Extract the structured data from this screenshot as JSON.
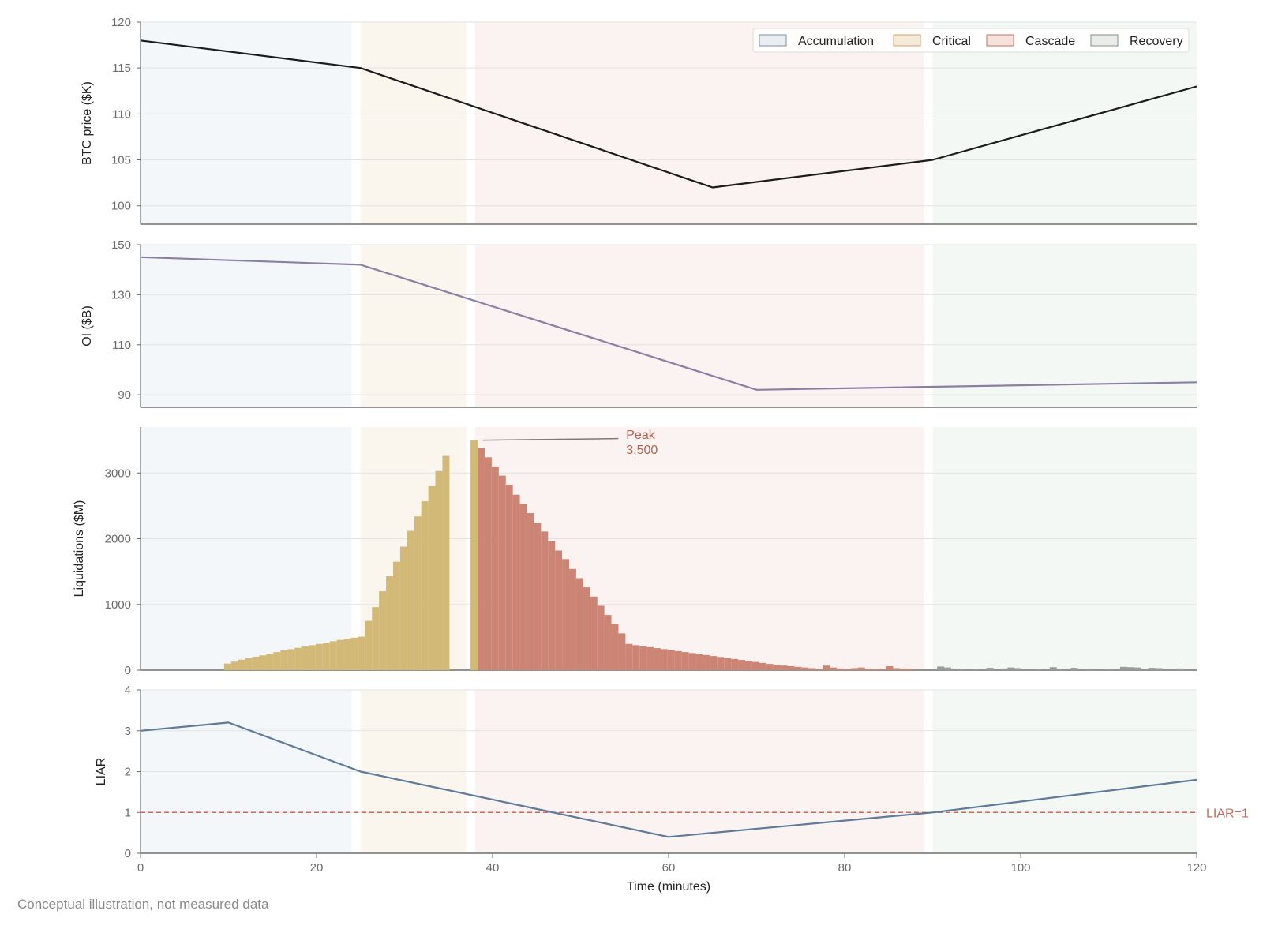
{
  "footer_note": "Conceptual illustration, not measured data",
  "chart_data": {
    "type": "multi-panel",
    "x_axis": {
      "label": "Time (minutes)",
      "range": [
        0,
        120
      ],
      "ticks": [
        0,
        20,
        40,
        60,
        80,
        100,
        120
      ]
    },
    "phases": [
      {
        "name": "Accumulation",
        "start": 0,
        "end": 24,
        "fill": "#dbe6f0",
        "legend_fill": "#e9eef3",
        "legend_edge": "#7f93a8"
      },
      {
        "name": "Critical",
        "start": 25,
        "end": 37,
        "fill": "#efe4c9",
        "legend_fill": "#f4ead8",
        "legend_edge": "#d6a06f"
      },
      {
        "name": "Cascade",
        "start": 38,
        "end": 89,
        "fill": "#f1d9d3",
        "legend_fill": "#f5e2dc",
        "legend_edge": "#c9705f"
      },
      {
        "name": "Recovery",
        "start": 90,
        "end": 120,
        "fill": "#dde8dd",
        "legend_fill": "#e9ece9",
        "legend_edge": "#8a8f8a"
      }
    ],
    "legend_position": "top-right",
    "panels": [
      {
        "id": "price",
        "type": "line",
        "ylabel": "BTC price ($K)",
        "ylim": [
          98,
          120
        ],
        "yticks": [
          100,
          105,
          110,
          115,
          120
        ],
        "color": "#1c1c1c",
        "points": [
          [
            0,
            118
          ],
          [
            25,
            115
          ],
          [
            65,
            102
          ],
          [
            90,
            105
          ],
          [
            120,
            113
          ]
        ]
      },
      {
        "id": "oi",
        "type": "line",
        "ylabel": "OI ($B)",
        "ylim": [
          85,
          150
        ],
        "yticks": [
          90,
          110,
          130,
          150
        ],
        "color": "#8b7fa3",
        "points": [
          [
            0,
            145
          ],
          [
            25,
            142
          ],
          [
            70,
            92
          ],
          [
            120,
            95
          ]
        ]
      },
      {
        "id": "liquidations",
        "type": "bar",
        "ylabel": "Liquidations ($M)",
        "ylim": [
          0,
          3700
        ],
        "yticks": [
          0,
          1000,
          2000,
          3000
        ],
        "bin_width_minutes": 0.8,
        "colors": {
          "pre_peak": "#d2b978",
          "post_peak": "#cc8474",
          "recovery": "#9a9a9a"
        },
        "peak_annotation": {
          "text_line1": "Peak",
          "text_line2": "3,500",
          "x": 38,
          "y": 3500,
          "text_x": 55,
          "text_y": 3450,
          "color": "#b8604e"
        },
        "bins": [
          [
            9.5,
            100
          ],
          [
            10.3,
            130
          ],
          [
            11.1,
            160
          ],
          [
            11.9,
            185
          ],
          [
            12.7,
            205
          ],
          [
            13.5,
            225
          ],
          [
            14.3,
            250
          ],
          [
            15.1,
            275
          ],
          [
            15.9,
            300
          ],
          [
            16.7,
            320
          ],
          [
            17.5,
            340
          ],
          [
            18.3,
            360
          ],
          [
            19.1,
            380
          ],
          [
            19.9,
            400
          ],
          [
            20.7,
            420
          ],
          [
            21.5,
            440
          ],
          [
            22.3,
            460
          ],
          [
            23.1,
            480
          ],
          [
            23.9,
            495
          ],
          [
            24.7,
            510
          ],
          [
            25.5,
            750
          ],
          [
            26.3,
            960
          ],
          [
            27.1,
            1200
          ],
          [
            27.9,
            1430
          ],
          [
            28.7,
            1650
          ],
          [
            29.5,
            1880
          ],
          [
            30.3,
            2120
          ],
          [
            31.1,
            2340
          ],
          [
            31.9,
            2570
          ],
          [
            32.7,
            2800
          ],
          [
            33.5,
            3030
          ],
          [
            34.3,
            3260
          ],
          [
            37.5,
            3500
          ],
          [
            38.3,
            3380
          ],
          [
            39.1,
            3240
          ],
          [
            39.9,
            3100
          ],
          [
            40.7,
            2960
          ],
          [
            41.5,
            2820
          ],
          [
            42.3,
            2670
          ],
          [
            43.1,
            2530
          ],
          [
            43.9,
            2390
          ],
          [
            44.7,
            2240
          ],
          [
            45.5,
            2110
          ],
          [
            46.3,
            1960
          ],
          [
            47.1,
            1820
          ],
          [
            47.9,
            1690
          ],
          [
            48.7,
            1540
          ],
          [
            49.5,
            1400
          ],
          [
            50.3,
            1260
          ],
          [
            51.1,
            1120
          ],
          [
            51.9,
            980
          ],
          [
            52.7,
            840
          ],
          [
            53.5,
            700
          ],
          [
            54.3,
            560
          ],
          [
            55.1,
            400
          ],
          [
            55.9,
            380
          ],
          [
            56.7,
            365
          ],
          [
            57.5,
            350
          ],
          [
            58.3,
            335
          ],
          [
            59.1,
            320
          ],
          [
            59.9,
            305
          ],
          [
            60.7,
            290
          ],
          [
            61.5,
            275
          ],
          [
            62.3,
            260
          ],
          [
            63.1,
            245
          ],
          [
            63.9,
            230
          ],
          [
            64.7,
            215
          ],
          [
            65.5,
            200
          ],
          [
            66.3,
            185
          ],
          [
            67.1,
            170
          ],
          [
            67.9,
            155
          ],
          [
            68.7,
            140
          ],
          [
            69.5,
            125
          ],
          [
            70.3,
            110
          ],
          [
            71.1,
            95
          ],
          [
            71.9,
            80
          ],
          [
            72.7,
            70
          ],
          [
            73.5,
            60
          ],
          [
            74.3,
            50
          ],
          [
            75.1,
            40
          ],
          [
            75.9,
            30
          ],
          [
            76.7,
            20
          ],
          [
            77.5,
            70
          ],
          [
            78.3,
            40
          ],
          [
            79.1,
            25
          ],
          [
            79.9,
            15
          ],
          [
            80.7,
            30
          ],
          [
            81.5,
            40
          ],
          [
            82.3,
            20
          ],
          [
            83.1,
            15
          ],
          [
            83.9,
            20
          ],
          [
            84.7,
            60
          ],
          [
            85.5,
            30
          ],
          [
            86.3,
            25
          ],
          [
            87.1,
            20
          ],
          [
            90.5,
            55
          ],
          [
            91.3,
            40
          ],
          [
            92.9,
            20
          ],
          [
            94.5,
            15
          ],
          [
            96.1,
            35
          ],
          [
            97.7,
            25
          ],
          [
            98.5,
            40
          ],
          [
            99.3,
            30
          ],
          [
            101.7,
            20
          ],
          [
            103.3,
            45
          ],
          [
            104.1,
            25
          ],
          [
            105.7,
            35
          ],
          [
            107.3,
            20
          ],
          [
            109.7,
            15
          ],
          [
            111.3,
            50
          ],
          [
            112.1,
            45
          ],
          [
            112.9,
            40
          ],
          [
            114.5,
            35
          ],
          [
            115.3,
            30
          ],
          [
            117.7,
            25
          ]
        ]
      },
      {
        "id": "liar",
        "type": "line",
        "ylabel": "LIAR",
        "ylim": [
          0,
          4
        ],
        "yticks": [
          0,
          1,
          2,
          3,
          4
        ],
        "color": "#5f7a9a",
        "points": [
          [
            0,
            3
          ],
          [
            10,
            3.2
          ],
          [
            25,
            2
          ],
          [
            60,
            0.4
          ],
          [
            90,
            1
          ],
          [
            120,
            1.8
          ]
        ],
        "threshold": {
          "value": 1,
          "label": "LIAR=1",
          "color": "#c86a5a"
        }
      }
    ]
  }
}
